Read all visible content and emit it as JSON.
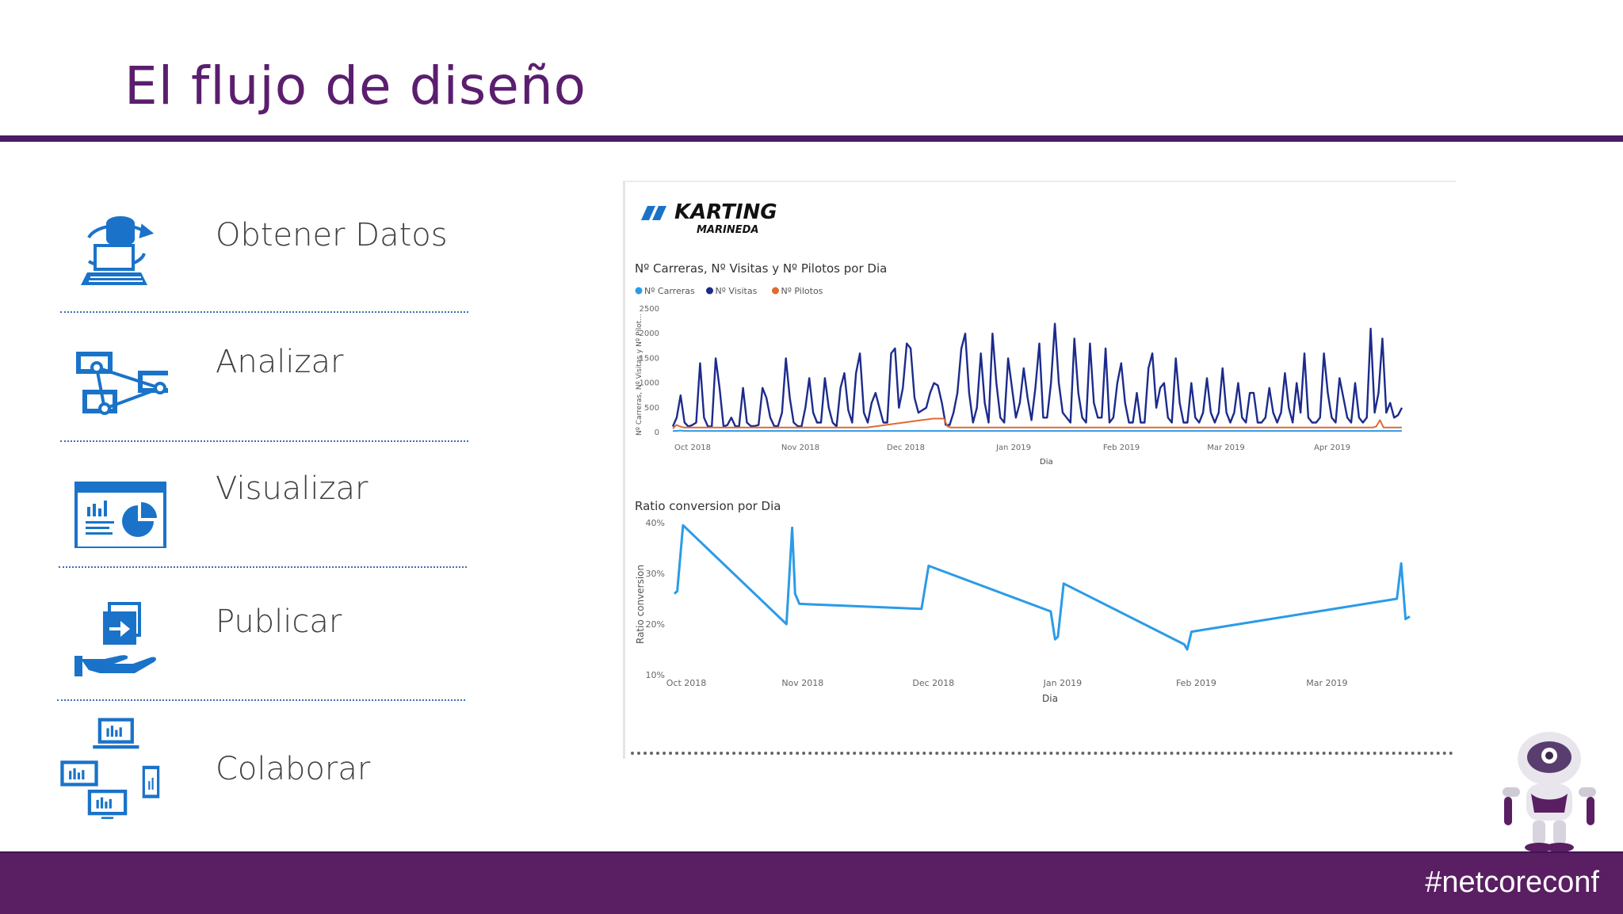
{
  "slide": {
    "title": "El flujo de diseño",
    "hashtag": "#netcoreconf"
  },
  "steps": [
    {
      "label": "Obtener Datos",
      "icon": "get-data-icon"
    },
    {
      "label": "Analizar",
      "icon": "analyze-icon"
    },
    {
      "label": "Visualizar",
      "icon": "visualize-icon"
    },
    {
      "label": "Publicar",
      "icon": "publish-icon"
    },
    {
      "label": "Colaborar",
      "icon": "collaborate-icon"
    }
  ],
  "report": {
    "logo_line1": "KARTING",
    "logo_line2": "MARINEDA"
  },
  "colors": {
    "title": "#5b1e6e",
    "rule": "#4a1c66",
    "footer": "#5a1e63",
    "icon_blue": "#1a73c8",
    "carreras": "#2b9be8",
    "visitas": "#1c2b8c",
    "pilotos": "#e06b32"
  },
  "chart_data": [
    {
      "type": "line",
      "title": "Nº Carreras, Nº Visitas y Nº Pilotos por Dia",
      "xlabel": "Dia",
      "ylabel": "Nº Carreras, Nº Visitas y Nº Pilot...",
      "ylim": [
        0,
        2500
      ],
      "yticks": [
        "2500",
        "2000",
        "1500",
        "1000",
        "500",
        "0"
      ],
      "x_ticks": [
        "Oct 2018",
        "Nov 2018",
        "Dec 2018",
        "Jan 2019",
        "Feb 2019",
        "Mar 2019",
        "Apr 2019"
      ],
      "legend_position": "top-left",
      "series": [
        {
          "name": "Nº Carreras",
          "color": "#2b9be8",
          "values": [
            30,
            30,
            40,
            30,
            30,
            30,
            30,
            30,
            30,
            30,
            30,
            30,
            30,
            30,
            30,
            30,
            30,
            30,
            30,
            30,
            30,
            30,
            30,
            30,
            30,
            30,
            30,
            30,
            30,
            30,
            30,
            30,
            30,
            30,
            30,
            30,
            30,
            30,
            30,
            30,
            30,
            30,
            30,
            30,
            30,
            30,
            30,
            30,
            30,
            30,
            30,
            30,
            30,
            30,
            30,
            30,
            30,
            30,
            30,
            30,
            30,
            30,
            30,
            30,
            30,
            30,
            30,
            30,
            30,
            30,
            30,
            30,
            30,
            30,
            30,
            30,
            30,
            30,
            30,
            30,
            30,
            30,
            30,
            30,
            30,
            30,
            30,
            30,
            30,
            30,
            30,
            30,
            30,
            30,
            30,
            30,
            30,
            30,
            30,
            30,
            30,
            30,
            30,
            30,
            30,
            30,
            30,
            30,
            30,
            30,
            30,
            30,
            30,
            30,
            30,
            30,
            30,
            30,
            30,
            30,
            30,
            30,
            30,
            30,
            30,
            30,
            30,
            30,
            30,
            30,
            30,
            30,
            30,
            30,
            30,
            30,
            30,
            30,
            30,
            30,
            30,
            30,
            30,
            30,
            30,
            30,
            30,
            30,
            30,
            30,
            30,
            30,
            30,
            30,
            30,
            30,
            30,
            30,
            30,
            30,
            30,
            30,
            30,
            30,
            30,
            30,
            30,
            30,
            30,
            30,
            30,
            30,
            30,
            30,
            30,
            30,
            30,
            30,
            30,
            30,
            30,
            30,
            30,
            30,
            30,
            30,
            30,
            30,
            30,
            30,
            30,
            30,
            30
          ]
        },
        {
          "name": "Nº Visitas",
          "color": "#1c2b8c",
          "values": [
            120,
            300,
            750,
            200,
            120,
            150,
            200,
            1400,
            300,
            120,
            120,
            1500,
            900,
            120,
            150,
            300,
            130,
            120,
            900,
            200,
            130,
            130,
            150,
            900,
            700,
            300,
            130,
            130,
            400,
            1500,
            700,
            200,
            130,
            120,
            500,
            1100,
            400,
            200,
            200,
            1100,
            500,
            200,
            120,
            900,
            1200,
            450,
            200,
            1200,
            1600,
            400,
            200,
            600,
            800,
            500,
            200,
            200,
            1600,
            1700,
            500,
            900,
            1800,
            1700,
            700,
            400,
            450,
            500,
            800,
            1000,
            950,
            600,
            150,
            150,
            400,
            800,
            1700,
            2000,
            800,
            200,
            500,
            1600,
            600,
            200,
            2000,
            1000,
            300,
            200,
            1500,
            900,
            300,
            600,
            1300,
            700,
            250,
            900,
            1800,
            300,
            300,
            1000,
            2200,
            1000,
            400,
            300,
            200,
            1900,
            800,
            300,
            200,
            1800,
            600,
            300,
            300,
            1700,
            200,
            300,
            1000,
            1400,
            600,
            200,
            200,
            800,
            200,
            200,
            1300,
            1600,
            500,
            900,
            1000,
            300,
            200,
            1500,
            600,
            200,
            200,
            1000,
            300,
            200,
            400,
            1100,
            400,
            200,
            400,
            1300,
            400,
            200,
            400,
            1000,
            300,
            200,
            800,
            800,
            200,
            200,
            300,
            900,
            400,
            200,
            400,
            1200,
            500,
            200,
            1000,
            400,
            1600,
            300,
            200,
            200,
            300,
            1600,
            800,
            300,
            200,
            1100,
            700,
            300,
            200,
            1000,
            300,
            200,
            300,
            2100,
            400,
            800,
            1900,
            400,
            600,
            300,
            350,
            500
          ]
        },
        {
          "name": "Nº Pilotos",
          "color": "#e06b32",
          "values": [
            80,
            150,
            120,
            100,
            100,
            100,
            100,
            100,
            100,
            100,
            100,
            100,
            100,
            100,
            100,
            100,
            100,
            100,
            100,
            100,
            100,
            100,
            100,
            100,
            100,
            100,
            100,
            100,
            100,
            100,
            100,
            100,
            100,
            100,
            100,
            100,
            100,
            100,
            100,
            100,
            100,
            100,
            100,
            100,
            100,
            100,
            100,
            100,
            100,
            100,
            100,
            100,
            100,
            100,
            110,
            120,
            130,
            140,
            150,
            160,
            170,
            180,
            190,
            200,
            210,
            220,
            230,
            240,
            250,
            260,
            270,
            280,
            280,
            280,
            280,
            120,
            100,
            100,
            100,
            100,
            100,
            100,
            100,
            100,
            100,
            100,
            100,
            100,
            100,
            100,
            100,
            100,
            100,
            100,
            100,
            100,
            100,
            100,
            100,
            100,
            100,
            100,
            100,
            100,
            100,
            100,
            100,
            100,
            100,
            100,
            100,
            100,
            100,
            100,
            100,
            100,
            100,
            100,
            100,
            100,
            100,
            100,
            100,
            100,
            100,
            100,
            100,
            100,
            100,
            100,
            100,
            100,
            100,
            100,
            100,
            100,
            100,
            100,
            100,
            100,
            100,
            100,
            100,
            100,
            100,
            100,
            100,
            100,
            100,
            100,
            100,
            100,
            100,
            100,
            100,
            100,
            100,
            100,
            100,
            100,
            100,
            100,
            100,
            100,
            100,
            100,
            100,
            100,
            100,
            100,
            100,
            100,
            100,
            100,
            100,
            100,
            100,
            100,
            100,
            100,
            100,
            100,
            100,
            100,
            100,
            100,
            100,
            100,
            100,
            100,
            100,
            100,
            120,
            250,
            100,
            100,
            100,
            100,
            100,
            100
          ]
        }
      ]
    },
    {
      "type": "line",
      "title": "Ratio conversion por Dia",
      "xlabel": "Dia",
      "ylabel": "Ratio conversion",
      "ylim": [
        10,
        40
      ],
      "yticks": [
        "40%",
        "30%",
        "20%",
        "10%"
      ],
      "x_ticks": [
        "Oct 2018",
        "Nov 2018",
        "Dec 2018",
        "Jan 2019",
        "Feb 2019",
        "Mar 2019"
      ],
      "series": [
        {
          "color": "#2b9be8",
          "points": [
            [
              0,
              26
            ],
            [
              2,
              26.5
            ],
            [
              6,
              39.5
            ],
            [
              78,
              20
            ],
            [
              82,
              39
            ],
            [
              84,
              26
            ],
            [
              87,
              24
            ],
            [
              172,
              23
            ],
            [
              177,
              31.5
            ],
            [
              262,
              22.5
            ],
            [
              265,
              17
            ],
            [
              267,
              17.5
            ],
            [
              271,
              28
            ],
            [
              355,
              16
            ],
            [
              357,
              15
            ],
            [
              360,
              18.5
            ],
            [
              503,
              25
            ],
            [
              506,
              32
            ],
            [
              509,
              21
            ],
            [
              512,
              21.5
            ]
          ]
        }
      ]
    }
  ]
}
